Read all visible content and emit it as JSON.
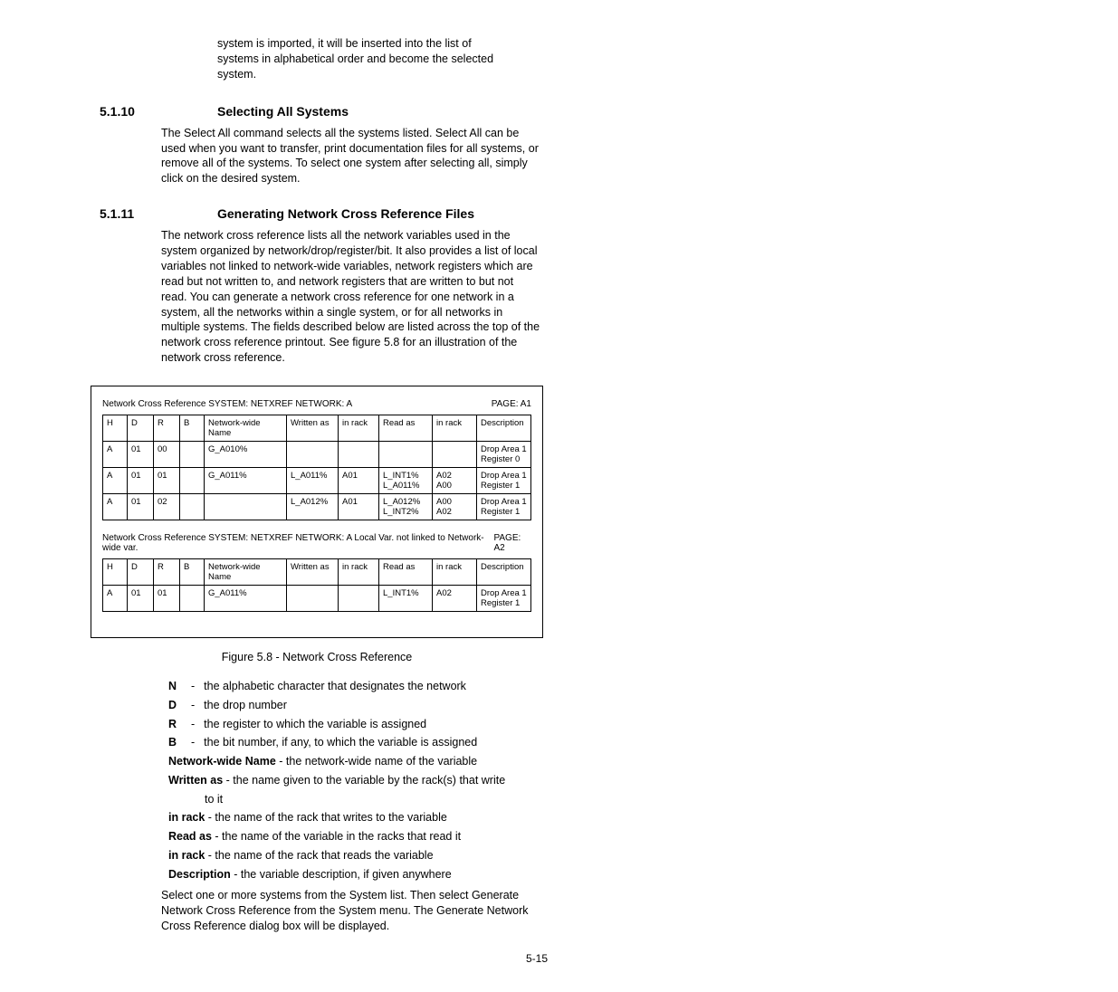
{
  "intro": "system is imported, it will be inserted into the list of systems in alphabetical order and become the selected system.",
  "section1": {
    "num": "5.1.10",
    "title": "Selecting All Systems",
    "body": "The Select All command selects all the systems listed. Select All can be used when you want to transfer, print documentation files for all systems, or remove all of the systems. To select one system after selecting all, simply click on the desired system."
  },
  "section2": {
    "num": "5.1.11",
    "title": "Generating Network Cross Reference Files",
    "body": "The network cross reference lists all the network variables used in the system organized by network/drop/register/bit. It also provides a list of local variables not linked to network-wide variables, network registers which are read but not written to, and network registers that are written to but not read. You can generate a network cross reference for one network in a system, all the networks within a single system, or for all networks in multiple systems. The fields described below are listed across the top of the network cross reference printout. See figure 5.8 for an illustration of the network cross reference."
  },
  "figure": {
    "table1_title": "Network Cross Reference SYSTEM: NETXREF NETWORK: A",
    "table1_page": "PAGE: A1",
    "headers": [
      "H",
      "D",
      "R",
      "B",
      "Network-wide Name",
      "Written as",
      "in rack",
      "Read as",
      "in rack",
      "Description"
    ],
    "table1_rows": [
      [
        "A",
        "01",
        "00",
        "",
        "G_A010%",
        "",
        "",
        "",
        "",
        "Drop Area 1 Register 0"
      ],
      [
        "A",
        "01",
        "01",
        "",
        "G_A011%",
        "L_A011%",
        "A01",
        "L_INT1%\nL_A011%",
        "A02\nA00",
        "Drop Area 1 Register 1"
      ],
      [
        "A",
        "01",
        "02",
        "",
        "",
        "L_A012%",
        "A01",
        "L_A012%\nL_INT2%",
        "A00\nA02",
        "Drop Area 1 Register 1"
      ]
    ],
    "table2_title": "Network Cross Reference SYSTEM: NETXREF NETWORK: A Local Var. not linked to Network-wide var.",
    "table2_page": "PAGE: A2",
    "table2_rows": [
      [
        "A",
        "01",
        "01",
        "",
        "G_A011%",
        "",
        "",
        "L_INT1%",
        "A02",
        "Drop Area 1 Register 1"
      ]
    ],
    "caption": "Figure 5.8 - Network Cross Reference"
  },
  "defs": {
    "short": [
      {
        "k": "N",
        "t": "the alphabetic character that designates the network"
      },
      {
        "k": "D",
        "t": "the drop number"
      },
      {
        "k": "R",
        "t": "the register to which the variable is assigned"
      },
      {
        "k": "B",
        "t": "the bit number, if any, to which the variable is assigned"
      }
    ],
    "inline": [
      {
        "k": "Network-wide Name",
        "t": " - the network-wide name of the variable"
      },
      {
        "k": "Written as",
        "t": " - the name given to the variable by the rack(s) that write to it",
        "wrap": true
      },
      {
        "k": "in rack",
        "t": " - the name of the rack that writes to the variable"
      },
      {
        "k": "Read as",
        "t": " - the name of the variable in the racks that read it"
      },
      {
        "k": "in rack",
        "t": " - the name of the rack that reads the variable"
      },
      {
        "k": "Description",
        "t": " - the variable description, if given anywhere"
      }
    ]
  },
  "trailing": "Select one or more systems from the System list. Then select Generate Network Cross Reference from the System menu. The Generate Network Cross Reference dialog box will be displayed.",
  "pagenum": "5-15"
}
